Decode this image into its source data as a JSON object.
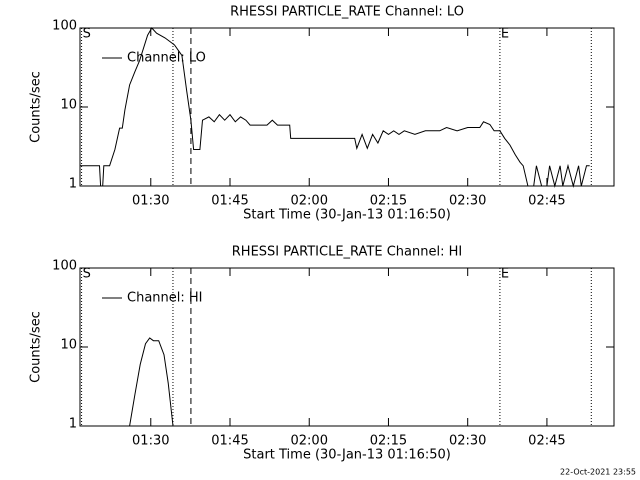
{
  "chart_data": [
    {
      "type": "line",
      "title": "RHESSI PARTICLE_RATE Channel: LO",
      "y_label": "Counts/sec",
      "x_label": "Start Time (30-Jan-13 01:16:50)",
      "log_y": true,
      "legend": "upper left",
      "xlim": [
        76.6,
        177.7
      ],
      "ylim": [
        1,
        100
      ],
      "yticks": [
        1,
        10,
        100
      ],
      "xticks": [
        {
          "value": 90,
          "label": "01:30"
        },
        {
          "value": 105,
          "label": "01:45"
        },
        {
          "value": 120,
          "label": "02:00"
        },
        {
          "value": 135,
          "label": "02:15"
        },
        {
          "value": 150,
          "label": "02:30"
        },
        {
          "value": 165,
          "label": "02:45"
        }
      ],
      "vlines": [
        {
          "x": 76.9,
          "style": "dotted",
          "label": "S"
        },
        {
          "x": 94.2,
          "style": "dotted"
        },
        {
          "x": 97.6,
          "style": "dashed"
        },
        {
          "x": 156.1,
          "style": "dotted",
          "label": "E"
        },
        {
          "x": 173.4,
          "style": "dotted"
        }
      ],
      "series": [
        {
          "name": "Channel: LO",
          "color": "#000000",
          "x": [
            76.6,
            80.3,
            80.5,
            80.9,
            81.1,
            82.2,
            83.2,
            84.1,
            84.6,
            85.1,
            86,
            87,
            87.9,
            89.4,
            90.2,
            91.1,
            92.7,
            94.5,
            95.9,
            96.8,
            97.6,
            98.1,
            99.3,
            99.8,
            101,
            102,
            103,
            104,
            105,
            106,
            107,
            108,
            108.8,
            112,
            113,
            114,
            116.3,
            116.5,
            128.6,
            129,
            130,
            131,
            132,
            133,
            134,
            135,
            136,
            137,
            138,
            140,
            142,
            144.7,
            146,
            148,
            150,
            152.3,
            153,
            154.2,
            155,
            156.1,
            157,
            158,
            159,
            159.9,
            160.5,
            161.4,
            162.5,
            163,
            164,
            165,
            165.5,
            166.5,
            167.5,
            168,
            169,
            170,
            171,
            171.5,
            172.5,
            173.1
          ],
          "values": [
            1.8,
            1.8,
            1,
            1,
            1.8,
            1.8,
            2.9,
            5.4,
            5.4,
            9.2,
            19,
            28,
            39,
            81,
            100,
            86,
            75,
            61,
            45,
            16,
            6.8,
            2.9,
            2.9,
            6.8,
            7.5,
            6.5,
            8,
            6.8,
            8,
            6.5,
            7.5,
            6.8,
            5.9,
            5.9,
            6.8,
            5.9,
            5.9,
            4,
            4,
            3,
            4.5,
            3,
            4.5,
            3.5,
            5,
            4.5,
            5,
            4.5,
            5,
            4.5,
            5,
            5,
            5.5,
            5,
            5.5,
            5.5,
            6.5,
            6,
            5,
            5,
            4,
            3.3,
            2.5,
            2,
            1.8,
            1,
            1,
            1.8,
            1,
            1,
            1.8,
            1,
            1.8,
            1,
            1.8,
            1,
            1.8,
            1,
            1.8,
            1.8
          ]
        }
      ]
    },
    {
      "type": "line",
      "title": "RHESSI PARTICLE_RATE Channel: HI",
      "y_label": "Counts/sec",
      "x_label": "Start Time (30-Jan-13 01:16:50)",
      "log_y": true,
      "legend": "upper left",
      "xlim": [
        76.6,
        177.7
      ],
      "ylim": [
        1,
        100
      ],
      "yticks": [
        1,
        10,
        100
      ],
      "xticks": [
        {
          "value": 90,
          "label": "01:30"
        },
        {
          "value": 105,
          "label": "01:45"
        },
        {
          "value": 120,
          "label": "02:00"
        },
        {
          "value": 135,
          "label": "02:15"
        },
        {
          "value": 150,
          "label": "02:30"
        },
        {
          "value": 165,
          "label": "02:45"
        }
      ],
      "vlines": [
        {
          "x": 76.9,
          "style": "dotted",
          "label": "S"
        },
        {
          "x": 94.2,
          "style": "dotted"
        },
        {
          "x": 97.6,
          "style": "dashed"
        },
        {
          "x": 156.1,
          "style": "dotted",
          "label": "E"
        },
        {
          "x": 173.4,
          "style": "dotted"
        }
      ],
      "series": [
        {
          "name": "Channel: HI",
          "color": "#000000",
          "x": [
            86,
            87,
            88,
            89,
            89.8,
            90.5,
            91.5,
            92.5,
            93.3,
            94.2
          ],
          "values": [
            1,
            2.5,
            6,
            11,
            13,
            12,
            12,
            8,
            3.5,
            1
          ]
        }
      ]
    }
  ],
  "footer": "22-Oct-2021 23:55"
}
